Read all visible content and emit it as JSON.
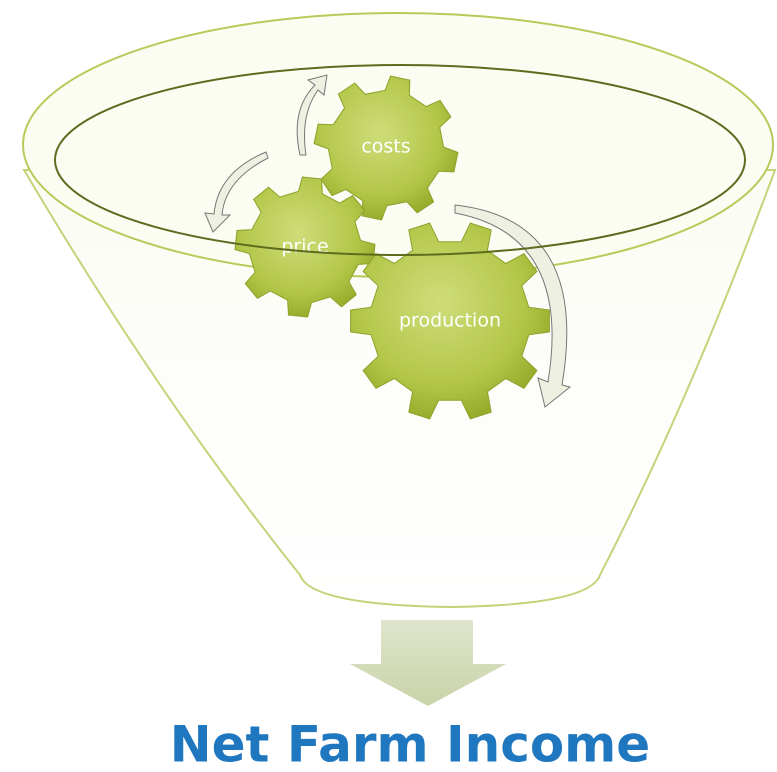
{
  "nodes": [
    {
      "label": "costs"
    },
    {
      "label": "price"
    },
    {
      "label": "production"
    }
  ],
  "output": {
    "label": "Net Farm Income"
  }
}
